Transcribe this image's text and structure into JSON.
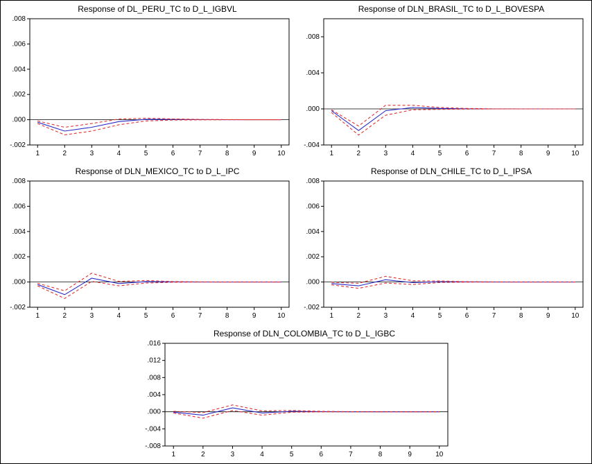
{
  "figure": {
    "background": "#ffffff",
    "border_color": "#000000",
    "axis_color": "#000000",
    "response_line_color": "#2929c8",
    "band_line_color": "#e03030"
  },
  "chart_data": [
    {
      "type": "line",
      "title": "Response of DL_PERU_TC to D_L_IGBVL",
      "x": [
        1,
        2,
        3,
        4,
        5,
        6,
        7,
        8,
        9,
        10
      ],
      "xlabel": "",
      "ylabel": "",
      "ylim": [
        -0.002,
        0.008
      ],
      "grid": false,
      "legend": "none",
      "yticks": [
        {
          "value": 0.008,
          "label": ".008"
        },
        {
          "value": 0.006,
          "label": ".006"
        },
        {
          "value": 0.004,
          "label": ".004"
        },
        {
          "value": 0.002,
          "label": ".002"
        },
        {
          "value": 0.0,
          "label": ".000"
        },
        {
          "value": -0.002,
          "label": "-.002"
        }
      ],
      "series": [
        {
          "name": "impulse-response",
          "color": "#2929c8",
          "style": "solid",
          "values": [
            -0.0002,
            -0.0009,
            -0.0006,
            -0.00015,
            3e-05,
            2e-05,
            1e-05,
            0.0,
            0.0,
            0.0
          ]
        },
        {
          "name": "upper-2se-band",
          "color": "#e03030",
          "style": "dashed",
          "values": [
            -0.0001,
            -0.0006,
            -0.0003,
            5e-05,
            0.00012,
            6e-05,
            2e-05,
            1e-05,
            0.0,
            0.0
          ]
        },
        {
          "name": "lower-2se-band",
          "color": "#e03030",
          "style": "dashed",
          "values": [
            -0.0003,
            -0.0012,
            -0.0009,
            -0.0004,
            -0.0001,
            -3e-05,
            -1e-05,
            0.0,
            0.0,
            0.0
          ]
        }
      ]
    },
    {
      "type": "line",
      "title": "Response of DLN_BRASIL_TC to D_L_BOVESPA",
      "x": [
        1,
        2,
        3,
        4,
        5,
        6,
        7,
        8,
        9,
        10
      ],
      "xlabel": "",
      "ylabel": "",
      "ylim": [
        -0.004,
        0.01
      ],
      "grid": false,
      "legend": "none",
      "yticks": [
        {
          "value": 0.008,
          "label": ".008"
        },
        {
          "value": 0.004,
          "label": ".004"
        },
        {
          "value": 0.0,
          "label": ".000"
        },
        {
          "value": -0.004,
          "label": "-.004"
        }
      ],
      "series": [
        {
          "name": "impulse-response",
          "color": "#2929c8",
          "style": "solid",
          "values": [
            -0.0002,
            -0.0024,
            -0.0002,
            0.00015,
            5e-05,
            1e-05,
            0.0,
            0.0,
            0.0,
            0.0
          ]
        },
        {
          "name": "upper-2se-band",
          "color": "#e03030",
          "style": "dashed",
          "values": [
            -0.0001,
            -0.0019,
            0.0004,
            0.0004,
            0.00015,
            5e-05,
            1e-05,
            0.0,
            0.0,
            0.0
          ]
        },
        {
          "name": "lower-2se-band",
          "color": "#e03030",
          "style": "dashed",
          "values": [
            -0.0004,
            -0.0029,
            -0.0007,
            -0.0001,
            -5e-05,
            -2e-05,
            0.0,
            0.0,
            0.0,
            0.0
          ]
        }
      ]
    },
    {
      "type": "line",
      "title": "Response of DLN_MEXICO_TC to D_L_IPC",
      "x": [
        1,
        2,
        3,
        4,
        5,
        6,
        7,
        8,
        9,
        10
      ],
      "xlabel": "",
      "ylabel": "",
      "ylim": [
        -0.002,
        0.008
      ],
      "grid": false,
      "legend": "none",
      "yticks": [
        {
          "value": 0.008,
          "label": ".008"
        },
        {
          "value": 0.006,
          "label": ".006"
        },
        {
          "value": 0.004,
          "label": ".004"
        },
        {
          "value": 0.002,
          "label": ".002"
        },
        {
          "value": 0.0,
          "label": ".000"
        },
        {
          "value": -0.002,
          "label": "-.002"
        }
      ],
      "series": [
        {
          "name": "impulse-response",
          "color": "#2929c8",
          "style": "solid",
          "values": [
            -0.0002,
            -0.001,
            0.0003,
            -0.00012,
            3e-05,
            1e-05,
            0.0,
            0.0,
            0.0,
            0.0
          ]
        },
        {
          "name": "upper-2se-band",
          "color": "#e03030",
          "style": "dashed",
          "values": [
            -0.0001,
            -0.0007,
            0.0007,
            5e-05,
            0.00012,
            4e-05,
            1e-05,
            0.0,
            0.0,
            0.0
          ]
        },
        {
          "name": "lower-2se-band",
          "color": "#e03030",
          "style": "dashed",
          "values": [
            -0.0003,
            -0.0013,
            5e-05,
            -0.0003,
            -8e-05,
            -2e-05,
            0.0,
            0.0,
            0.0,
            0.0
          ]
        }
      ]
    },
    {
      "type": "line",
      "title": "Response of DLN_CHILE_TC to D_L_IPSA",
      "x": [
        1,
        2,
        3,
        4,
        5,
        6,
        7,
        8,
        9,
        10
      ],
      "xlabel": "",
      "ylabel": "",
      "ylim": [
        -0.002,
        0.008
      ],
      "grid": false,
      "legend": "none",
      "yticks": [
        {
          "value": 0.008,
          "label": ".008"
        },
        {
          "value": 0.006,
          "label": ".006"
        },
        {
          "value": 0.004,
          "label": ".004"
        },
        {
          "value": 0.002,
          "label": ".002"
        },
        {
          "value": 0.0,
          "label": ".000"
        },
        {
          "value": -0.002,
          "label": "-.002"
        }
      ],
      "series": [
        {
          "name": "impulse-response",
          "color": "#2929c8",
          "style": "solid",
          "values": [
            -0.00012,
            -0.0003,
            0.00018,
            -5e-05,
            2e-05,
            1e-05,
            0.0,
            0.0,
            0.0,
            0.0
          ]
        },
        {
          "name": "upper-2se-band",
          "color": "#e03030",
          "style": "dashed",
          "values": [
            -2e-05,
            -0.0001,
            0.00045,
            0.0001,
            8e-05,
            3e-05,
            1e-05,
            0.0,
            0.0,
            0.0
          ]
        },
        {
          "name": "lower-2se-band",
          "color": "#e03030",
          "style": "dashed",
          "values": [
            -0.00022,
            -0.0005,
            -8e-05,
            -0.0002,
            -4e-05,
            -1e-05,
            0.0,
            0.0,
            0.0,
            0.0
          ]
        }
      ]
    },
    {
      "type": "line",
      "title": "Response of DLN_COLOMBIA_TC to D_L_IGBC",
      "x": [
        1,
        2,
        3,
        4,
        5,
        6,
        7,
        8,
        9,
        10
      ],
      "xlabel": "",
      "ylabel": "",
      "ylim": [
        -0.008,
        0.016
      ],
      "grid": false,
      "legend": "none",
      "yticks": [
        {
          "value": 0.016,
          "label": ".016"
        },
        {
          "value": 0.012,
          "label": ".012"
        },
        {
          "value": 0.008,
          "label": ".008"
        },
        {
          "value": 0.004,
          "label": ".004"
        },
        {
          "value": 0.0,
          "label": ".000"
        },
        {
          "value": -0.004,
          "label": "-.004"
        },
        {
          "value": -0.008,
          "label": "-.008"
        }
      ],
      "series": [
        {
          "name": "impulse-response",
          "color": "#2929c8",
          "style": "solid",
          "values": [
            -0.0001,
            -0.0008,
            0.0009,
            -0.0003,
            0.0001,
            3e-05,
            0.0,
            0.0,
            0.0,
            0.0
          ]
        },
        {
          "name": "upper-2se-band",
          "color": "#e03030",
          "style": "dashed",
          "values": [
            0.0001,
            -0.0002,
            0.0016,
            0.0002,
            0.0003,
            0.0001,
            3e-05,
            0.0,
            0.0,
            0.0
          ]
        },
        {
          "name": "lower-2se-band",
          "color": "#e03030",
          "style": "dashed",
          "values": [
            -0.0003,
            -0.0015,
            0.0003,
            -0.0008,
            -0.0001,
            -4e-05,
            0.0,
            0.0,
            0.0,
            0.0
          ]
        }
      ]
    }
  ]
}
